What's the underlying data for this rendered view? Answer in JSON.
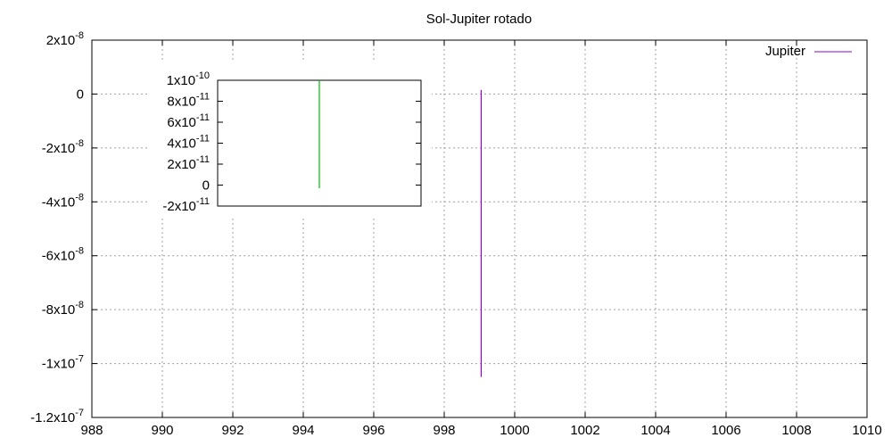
{
  "chart_data": [
    {
      "type": "line",
      "title": "Sol-Jupiter rotado",
      "xlim": [
        988,
        1010
      ],
      "ylim": [
        -1.2e-07,
        2e-08
      ],
      "x_ticks": [
        "988",
        "990",
        "992",
        "994",
        "996",
        "998",
        "1000",
        "1002",
        "1004",
        "1006",
        "1008",
        "1010"
      ],
      "y_ticks": [
        {
          "value": 2e-08,
          "mant": "2x10",
          "exp": "-8"
        },
        {
          "value": 0,
          "mant": "0",
          "exp": ""
        },
        {
          "value": -2e-08,
          "mant": "-2x10",
          "exp": "-8"
        },
        {
          "value": -4e-08,
          "mant": "-4x10",
          "exp": "-8"
        },
        {
          "value": -6e-08,
          "mant": "-6x10",
          "exp": "-8"
        },
        {
          "value": -8e-08,
          "mant": "-8x10",
          "exp": "-8"
        },
        {
          "value": -1e-07,
          "mant": "-1x10",
          "exp": "-7"
        },
        {
          "value": -1.2e-07,
          "mant": "-1.2x10",
          "exp": "-7"
        }
      ],
      "grid": true,
      "legend_position": "top-right",
      "series": [
        {
          "name": "Jupiter",
          "color": "#9400d3",
          "x": [
            999.05,
            999.05
          ],
          "y": [
            1.5e-09,
            -1.05e-07
          ]
        }
      ]
    },
    {
      "type": "line",
      "title": "",
      "inset": true,
      "ylim": [
        -2e-11,
        1e-10
      ],
      "y_ticks": [
        {
          "value": 1e-10,
          "mant": "1x10",
          "exp": "-10"
        },
        {
          "value": 8e-11,
          "mant": "8x10",
          "exp": "-11"
        },
        {
          "value": 6e-11,
          "mant": "6x10",
          "exp": "-11"
        },
        {
          "value": 4e-11,
          "mant": "4x10",
          "exp": "-11"
        },
        {
          "value": 2e-11,
          "mant": "2x10",
          "exp": "-11"
        },
        {
          "value": 0,
          "mant": "0",
          "exp": ""
        },
        {
          "value": -2e-11,
          "mant": "-2x10",
          "exp": "-11"
        }
      ],
      "grid": false,
      "series": [
        {
          "color": "#00c000",
          "x_fraction": 0.5,
          "y": [
            1e-10,
            -3e-12
          ]
        }
      ]
    }
  ]
}
